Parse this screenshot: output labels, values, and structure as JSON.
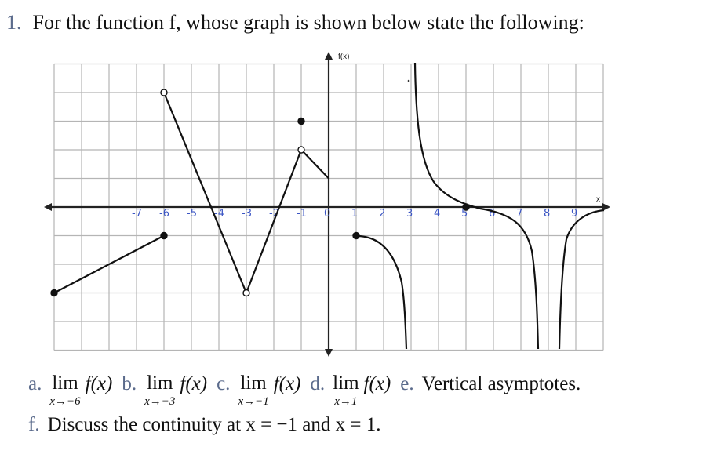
{
  "question": {
    "number": "1.",
    "text": "For the function f, whose graph is shown below state the following:"
  },
  "graph": {
    "y_axis_label": "f(x)",
    "x_axis_label": "x",
    "tick_labels": [
      {
        "text": "-7",
        "x": -7
      },
      {
        "text": "-6",
        "x": -6
      },
      {
        "text": "-5",
        "x": -5
      },
      {
        "text": "-4",
        "x": -4
      },
      {
        "text": "-3",
        "x": -3
      },
      {
        "text": "-2",
        "x": -2
      },
      {
        "text": "-1",
        "x": -1
      },
      {
        "text": "0",
        "x": 0
      },
      {
        "text": "1",
        "x": 1
      },
      {
        "text": "2",
        "x": 2
      },
      {
        "text": "3",
        "x": 3
      },
      {
        "text": "4",
        "x": 4
      },
      {
        "text": "5",
        "x": 5
      },
      {
        "text": "6",
        "x": 6
      },
      {
        "text": "7",
        "x": 7
      },
      {
        "text": "8",
        "x": 8
      },
      {
        "text": "9",
        "x": 9
      }
    ],
    "x_range": [
      -10,
      10
    ],
    "y_range": [
      -5,
      5
    ],
    "grid": true,
    "colors": {
      "grid": "#b5b5b5",
      "curve": "#111111",
      "ticks": "#3b55c4"
    },
    "segments": [
      [
        [
          -10,
          -3
        ],
        [
          -6,
          -1
        ]
      ],
      [
        [
          -6,
          4
        ],
        [
          -3,
          -3
        ]
      ],
      [
        [
          -3,
          -3
        ],
        [
          -1,
          2
        ]
      ],
      [
        [
          -1,
          2
        ],
        [
          0,
          1
        ]
      ]
    ],
    "points": [
      {
        "x": -10,
        "y": -3,
        "open": false
      },
      {
        "x": -6,
        "y": -1,
        "open": false
      },
      {
        "x": -6,
        "y": 4,
        "open": true
      },
      {
        "x": -3,
        "y": -3,
        "open": true
      },
      {
        "x": -1,
        "y": 3,
        "open": false
      },
      {
        "x": -1,
        "y": 2,
        "open": true
      },
      {
        "x": 1,
        "y": -1,
        "open": false
      },
      {
        "x": 5,
        "y": 0,
        "open": false
      }
    ]
  },
  "parts": {
    "a": {
      "label": "a.",
      "lim": "lim",
      "sub": "x→−6",
      "expr": "f(x)"
    },
    "b": {
      "label": "b.",
      "lim": "lim",
      "sub": "x→−3",
      "expr": "f(x)"
    },
    "c": {
      "label": "c.",
      "lim": "lim",
      "sub": "x→−1",
      "expr": "f(x)"
    },
    "d": {
      "label": "d.",
      "lim": "lim",
      "sub": "x→1",
      "expr": "f(x)"
    },
    "e": {
      "label": "e.",
      "text": "Vertical asymptotes."
    },
    "f": {
      "label": "f.",
      "text": "Discuss the continuity at x = −1 and x = 1."
    }
  }
}
